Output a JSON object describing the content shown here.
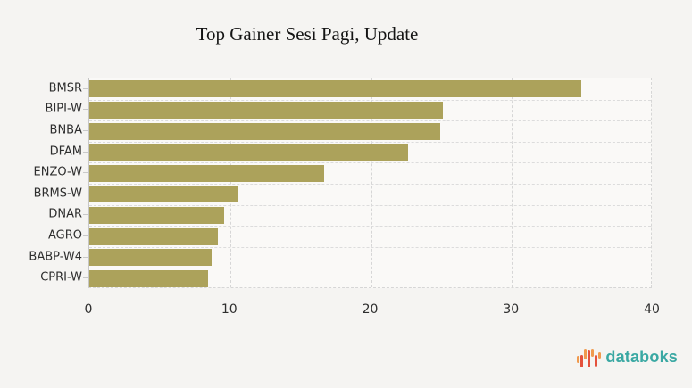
{
  "title": "Top Gainer Sesi Pagi, Update",
  "footer": {
    "brand": "databoks",
    "logo_icon": "bar-waveform-icon"
  },
  "colors": {
    "background": "#f5f4f2",
    "plot_background": "#faf9f7",
    "bar": "#aca25b",
    "grid": "#d6d6d6",
    "row_grid": "#dcdcdc",
    "axis": "#c6c6c6",
    "tick": "#c9c9c9",
    "label_text": "#2e2e2e",
    "title_text": "#141414",
    "brand_teal": "#3aa8a3",
    "brand_orange": "#f09a4e",
    "brand_red": "#e4513c"
  },
  "chart_data": {
    "type": "bar",
    "orientation": "horizontal",
    "title": "Top Gainer Sesi Pagi, Update",
    "categories": [
      "BMSR",
      "BIPI-W",
      "BNBA",
      "DFAM",
      "ENZO-W",
      "BRMS-W",
      "DNAR",
      "AGRO",
      "BABP-W4",
      "CPRI-W"
    ],
    "values": [
      34.9,
      25.1,
      24.9,
      22.6,
      16.7,
      10.6,
      9.6,
      9.1,
      8.7,
      8.4
    ],
    "xlabel": "",
    "ylabel": "",
    "xlim": [
      0,
      40
    ],
    "xticks": [
      0,
      10,
      20,
      30,
      40
    ],
    "grid": "dashed",
    "legend": "none"
  }
}
